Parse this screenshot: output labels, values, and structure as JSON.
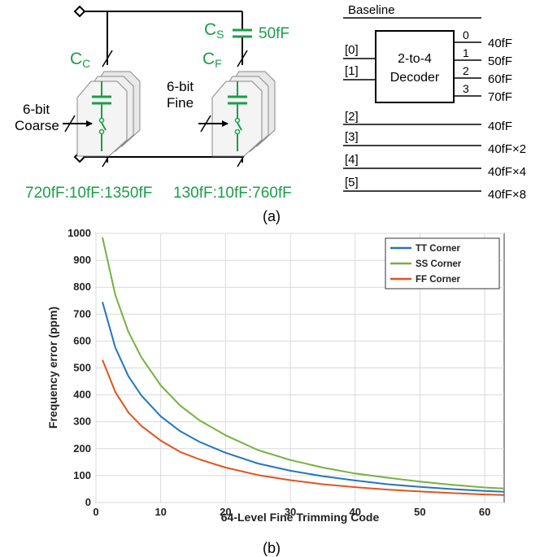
{
  "part_a": {
    "coarse_cap_label": "C",
    "coarse_cap_sub": "C",
    "fine_cap_label": "C",
    "fine_cap_sub": "F",
    "series_cap_label": "C",
    "series_cap_sub": "S",
    "series_cap_value": "50fF",
    "coarse_bits_line1": "6-bit",
    "coarse_bits_line2": "Coarse",
    "fine_bits_line1": "6-bit",
    "fine_bits_line2": "Fine",
    "coarse_range": "720fF:10fF:1350fF",
    "fine_range": "130fF:10fF:760fF",
    "baseline_label": "Baseline",
    "decoder_line1": "2-to-4",
    "decoder_line2": "Decoder",
    "decoder_inputs": [
      "[0]",
      "[1]"
    ],
    "decoder_outputs": [
      {
        "index": "0",
        "value": "40fF"
      },
      {
        "index": "1",
        "value": "50fF"
      },
      {
        "index": "2",
        "value": "60fF"
      },
      {
        "index": "3",
        "value": "70fF"
      }
    ],
    "bit_rows": [
      {
        "bit": "[2]",
        "value": "40fF"
      },
      {
        "bit": "[3]",
        "value": "40fF×2"
      },
      {
        "bit": "[4]",
        "value": "40fF×4"
      },
      {
        "bit": "[5]",
        "value": "40fF×8"
      }
    ],
    "caption": "(a)"
  },
  "part_b": {
    "caption": "(b)"
  },
  "colors": {
    "green": "#1a9e48",
    "tt": "#2476bd",
    "ss": "#77b041",
    "ff": "#e0541f"
  },
  "chart_data": {
    "type": "line",
    "xlabel": "64-Level Fine Trimming Code",
    "ylabel": "Frequency error  (ppm)",
    "xlim": [
      0,
      63
    ],
    "ylim": [
      0,
      1000
    ],
    "xticks": [
      0,
      10,
      20,
      30,
      40,
      50,
      60
    ],
    "yticks": [
      0,
      100,
      200,
      300,
      400,
      500,
      600,
      700,
      800,
      900,
      1000
    ],
    "grid": true,
    "legend_position": "top-right",
    "x": [
      1,
      3,
      5,
      7,
      10,
      13,
      16,
      20,
      25,
      30,
      35,
      40,
      45,
      50,
      55,
      60,
      63
    ],
    "series": [
      {
        "name": "TT Corner",
        "color": "#2476bd",
        "values": [
          745,
          575,
          470,
          398,
          320,
          265,
          225,
          185,
          145,
          118,
          98,
          82,
          68,
          58,
          50,
          43,
          40
        ]
      },
      {
        "name": "SS Corner",
        "color": "#77b041",
        "values": [
          985,
          770,
          635,
          540,
          435,
          360,
          305,
          250,
          195,
          158,
          130,
          108,
          92,
          78,
          66,
          56,
          52
        ]
      },
      {
        "name": "FF Corner",
        "color": "#e0541f",
        "values": [
          530,
          410,
          335,
          285,
          230,
          188,
          160,
          130,
          102,
          83,
          68,
          57,
          48,
          41,
          35,
          30,
          28
        ]
      }
    ]
  }
}
